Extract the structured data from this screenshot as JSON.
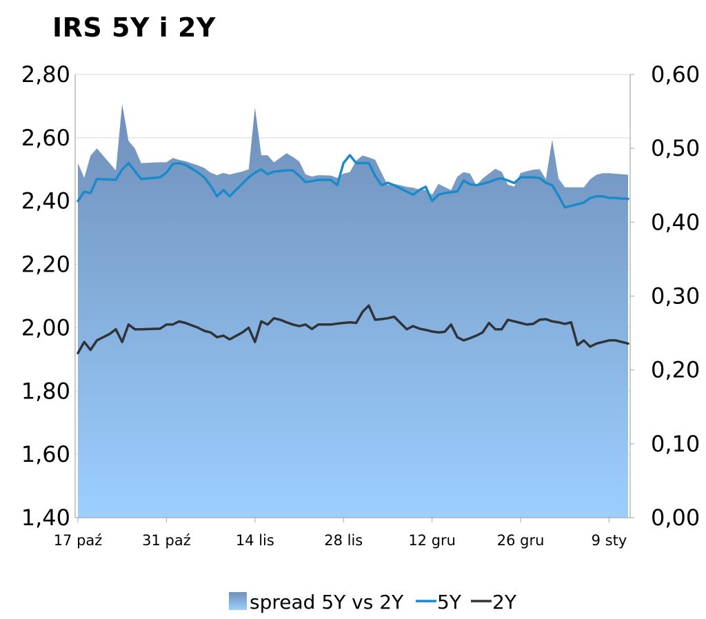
{
  "chart_data": {
    "type": "area+line",
    "title": "IRS 5Y i 2Y",
    "x_tick_labels": [
      "17 paź",
      "31 paź",
      "14 lis",
      "28 lis",
      "12 gru",
      "26 gru",
      "9 sty"
    ],
    "y_left": {
      "lim": [
        1.4,
        2.8
      ],
      "ticks": [
        "1,40",
        "1,60",
        "1,80",
        "2,00",
        "2,20",
        "2,40",
        "2,60",
        "2,80"
      ]
    },
    "y_right": {
      "lim": [
        0.0,
        0.6
      ],
      "ticks": [
        "0,00",
        "0,10",
        "0,20",
        "0,30",
        "0,40",
        "0,50",
        "0,60"
      ]
    },
    "grid": true,
    "legend_position": "bottom",
    "colors": {
      "area_top": "#6f8fb9",
      "area_bottom": "#9ccfff",
      "line_5y": "#1a8ac9",
      "line_2y": "#2f3438"
    },
    "series": [
      {
        "name": "spread 5Y vs 2Y",
        "type": "area",
        "axis": "right",
        "points": [
          [
            0,
            0.48
          ],
          [
            1,
            0.46
          ],
          [
            2,
            0.49
          ],
          [
            3,
            0.5
          ],
          [
            5,
            0.48
          ],
          [
            6,
            0.47
          ],
          [
            7,
            0.56
          ],
          [
            8,
            0.51
          ],
          [
            9,
            0.5
          ],
          [
            10,
            0.48
          ],
          [
            13,
            0.4811
          ],
          [
            14,
            0.4811
          ],
          [
            15,
            0.4868
          ],
          [
            16,
            0.4844
          ],
          [
            17,
            0.4825
          ],
          [
            19,
            0.4768
          ],
          [
            20,
            0.4734
          ],
          [
            21,
            0.467
          ],
          [
            22,
            0.4637
          ],
          [
            23,
            0.4667
          ],
          [
            24,
            0.4644
          ],
          [
            26,
            0.4687
          ],
          [
            27,
            0.4716
          ],
          [
            28,
            0.5552
          ],
          [
            29,
            0.4906
          ],
          [
            30,
            0.4906
          ],
          [
            31,
            0.4809
          ],
          [
            32,
            0.4872
          ],
          [
            33,
            0.4934
          ],
          [
            34,
            0.4883
          ],
          [
            35,
            0.4821
          ],
          [
            36,
            0.4648
          ],
          [
            37,
            0.4618
          ],
          [
            38,
            0.4637
          ],
          [
            40,
            0.4632
          ],
          [
            41,
            0.46
          ],
          [
            42,
            0.4658
          ],
          [
            43,
            0.4677
          ],
          [
            44,
            0.4833
          ],
          [
            45,
            0.4903
          ],
          [
            46,
            0.4878
          ],
          [
            47,
            0.4845
          ],
          [
            48,
            0.4669
          ],
          [
            49,
            0.45
          ],
          [
            50,
            0.4519
          ],
          [
            51,
            0.45
          ],
          [
            52,
            0.4479
          ],
          [
            53,
            0.4467
          ],
          [
            54,
            0.4442
          ],
          [
            55,
            0.4434
          ],
          [
            56,
            0.4372
          ],
          [
            57,
            0.4518
          ],
          [
            58,
            0.4477
          ],
          [
            59,
            0.4435
          ],
          [
            60,
            0.4617
          ],
          [
            61,
            0.4677
          ],
          [
            62,
            0.4659
          ],
          [
            63,
            0.4499
          ],
          [
            64,
            0.4592
          ],
          [
            65,
            0.4657
          ],
          [
            66,
            0.4723
          ],
          [
            67,
            0.4683
          ],
          [
            68,
            0.4508
          ],
          [
            69,
            0.4482
          ],
          [
            70,
            0.4667
          ],
          [
            71,
            0.469
          ],
          [
            72,
            0.471
          ],
          [
            73,
            0.4718
          ],
          [
            74,
            0.4585
          ],
          [
            75,
            0.5117
          ],
          [
            76,
            0.4591
          ],
          [
            77,
            0.4473
          ],
          [
            78,
            0.4472
          ],
          [
            79,
            0.4472
          ],
          [
            80,
            0.4472
          ],
          [
            81,
            0.4581
          ],
          [
            82,
            0.4642
          ],
          [
            83,
            0.4663
          ],
          [
            84,
            0.4663
          ],
          [
            85,
            0.4656
          ],
          [
            86,
            0.4649
          ],
          [
            87,
            0.4642
          ]
        ]
      },
      {
        "name": "5Y",
        "type": "line",
        "axis": "left",
        "points": [
          [
            0,
            2.4
          ],
          [
            1,
            2.43
          ],
          [
            2,
            2.425
          ],
          [
            3,
            2.47
          ],
          [
            5,
            2.468
          ],
          [
            6,
            2.467
          ],
          [
            7,
            2.5
          ],
          [
            8,
            2.52
          ],
          [
            9,
            2.495
          ],
          [
            10,
            2.47
          ],
          [
            13,
            2.475
          ],
          [
            14,
            2.49
          ],
          [
            15,
            2.517
          ],
          [
            16,
            2.52
          ],
          [
            17,
            2.515
          ],
          [
            19,
            2.49
          ],
          [
            20,
            2.475
          ],
          [
            21,
            2.448
          ],
          [
            22,
            2.415
          ],
          [
            23,
            2.435
          ],
          [
            24,
            2.415
          ],
          [
            26,
            2.455
          ],
          [
            27,
            2.475
          ],
          [
            28,
            2.49
          ],
          [
            29,
            2.5
          ],
          [
            30,
            2.485
          ],
          [
            31,
            2.493
          ],
          [
            32,
            2.495
          ],
          [
            33,
            2.497
          ],
          [
            34,
            2.497
          ],
          [
            35,
            2.48
          ],
          [
            36,
            2.46
          ],
          [
            37,
            2.463
          ],
          [
            38,
            2.467
          ],
          [
            40,
            2.467
          ],
          [
            41,
            2.45
          ],
          [
            42,
            2.52
          ],
          [
            43,
            2.545
          ],
          [
            44,
            2.52
          ],
          [
            45,
            2.52
          ],
          [
            46,
            2.52
          ],
          [
            47,
            2.48
          ],
          [
            48,
            2.45
          ],
          [
            49,
            2.458
          ],
          [
            50,
            2.45
          ],
          [
            51,
            2.44
          ],
          [
            52,
            2.43
          ],
          [
            53,
            2.42
          ],
          [
            54,
            2.435
          ],
          [
            55,
            2.445
          ],
          [
            56,
            2.4
          ],
          [
            57,
            2.42
          ],
          [
            58,
            2.425
          ],
          [
            59,
            2.428
          ],
          [
            60,
            2.43
          ],
          [
            61,
            2.465
          ],
          [
            62,
            2.453
          ],
          [
            63,
            2.45
          ],
          [
            64,
            2.455
          ],
          [
            65,
            2.46
          ],
          [
            66,
            2.468
          ],
          [
            67,
            2.472
          ],
          [
            68,
            2.465
          ],
          [
            69,
            2.457
          ],
          [
            70,
            2.475
          ],
          [
            71,
            2.475
          ],
          [
            72,
            2.475
          ],
          [
            73,
            2.473
          ],
          [
            74,
            2.458
          ],
          [
            75,
            2.45
          ],
          [
            76,
            2.417
          ],
          [
            77,
            2.38
          ],
          [
            78,
            2.385
          ],
          [
            79,
            2.39
          ],
          [
            80,
            2.395
          ],
          [
            81,
            2.41
          ],
          [
            82,
            2.415
          ],
          [
            83,
            2.415
          ],
          [
            84,
            2.41
          ],
          [
            85,
            2.41
          ],
          [
            86,
            2.408
          ],
          [
            87,
            2.407
          ]
        ]
      },
      {
        "name": "2Y",
        "type": "line",
        "axis": "left",
        "points": [
          [
            0,
            1.92
          ],
          [
            1,
            1.955
          ],
          [
            2,
            1.93
          ],
          [
            3,
            1.96
          ],
          [
            5,
            1.98
          ],
          [
            6,
            1.995
          ],
          [
            7,
            1.955
          ],
          [
            8,
            2.01
          ],
          [
            9,
            1.995
          ],
          [
            10,
            1.995
          ],
          [
            13,
            1.997
          ],
          [
            14,
            2.01
          ],
          [
            15,
            2.01
          ],
          [
            16,
            2.02
          ],
          [
            17,
            2.015
          ],
          [
            19,
            2.0
          ],
          [
            20,
            1.99
          ],
          [
            21,
            1.985
          ],
          [
            22,
            1.97
          ],
          [
            23,
            1.975
          ],
          [
            24,
            1.963
          ],
          [
            26,
            1.985
          ],
          [
            27,
            2.0
          ],
          [
            28,
            1.955
          ],
          [
            29,
            2.02
          ],
          [
            30,
            2.01
          ],
          [
            31,
            2.03
          ],
          [
            32,
            2.025
          ],
          [
            33,
            2.017
          ],
          [
            34,
            2.01
          ],
          [
            35,
            2.005
          ],
          [
            36,
            2.01
          ],
          [
            37,
            1.996
          ],
          [
            38,
            2.01
          ],
          [
            40,
            2.01
          ],
          [
            41,
            2.013
          ],
          [
            42,
            2.015
          ],
          [
            43,
            2.017
          ],
          [
            44,
            2.015
          ],
          [
            45,
            2.05
          ],
          [
            46,
            2.07
          ],
          [
            47,
            2.025
          ],
          [
            48,
            2.027
          ],
          [
            49,
            2.03
          ],
          [
            50,
            2.035
          ],
          [
            51,
            2.015
          ],
          [
            52,
            1.995
          ],
          [
            53,
            2.005
          ],
          [
            54,
            1.997
          ],
          [
            55,
            1.993
          ],
          [
            56,
            1.988
          ],
          [
            57,
            1.985
          ],
          [
            58,
            1.987
          ],
          [
            59,
            2.01
          ],
          [
            60,
            1.97
          ],
          [
            61,
            1.96
          ],
          [
            62,
            1.967
          ],
          [
            63,
            1.975
          ],
          [
            64,
            1.985
          ],
          [
            65,
            2.015
          ],
          [
            66,
            1.995
          ],
          [
            67,
            1.995
          ],
          [
            68,
            2.025
          ],
          [
            69,
            2.02
          ],
          [
            70,
            2.015
          ],
          [
            71,
            2.01
          ],
          [
            72,
            2.012
          ],
          [
            73,
            2.025
          ],
          [
            74,
            2.027
          ],
          [
            75,
            2.02
          ],
          [
            76,
            2.017
          ],
          [
            77,
            2.012
          ],
          [
            78,
            2.017
          ],
          [
            79,
            1.945
          ],
          [
            80,
            1.96
          ],
          [
            81,
            1.94
          ],
          [
            82,
            1.95
          ],
          [
            83,
            1.955
          ],
          [
            84,
            1.96
          ],
          [
            85,
            1.96
          ],
          [
            86,
            1.955
          ],
          [
            87,
            1.95
          ]
        ]
      }
    ]
  }
}
